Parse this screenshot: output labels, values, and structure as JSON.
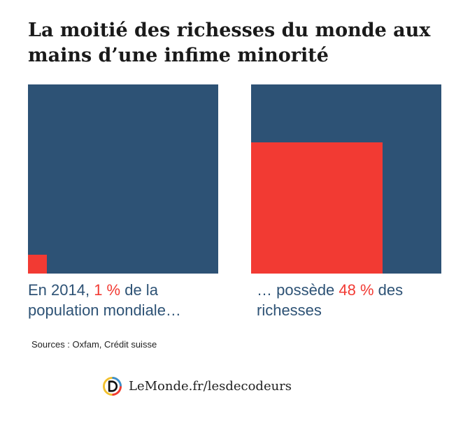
{
  "title": "La moitié des richesses du monde aux mains d’une infime minorité",
  "colors": {
    "panel": "#2d5275",
    "highlight": "#f23a33"
  },
  "chart_data": {
    "type": "area",
    "panels": [
      {
        "name": "population",
        "value_pct": 1,
        "caption": {
          "before": "En 2014, ",
          "highlight": "1 %",
          "after": " de la population mondiale…"
        }
      },
      {
        "name": "richesses",
        "value_pct": 48,
        "caption": {
          "before": "… possède ",
          "highlight": "48 %",
          "after": " des richesses"
        }
      }
    ]
  },
  "source": "Sources : Oxfam, Crédit suisse",
  "brand": {
    "logo_letter": "D",
    "text": "LeMonde.fr/lesdecodeurs"
  }
}
